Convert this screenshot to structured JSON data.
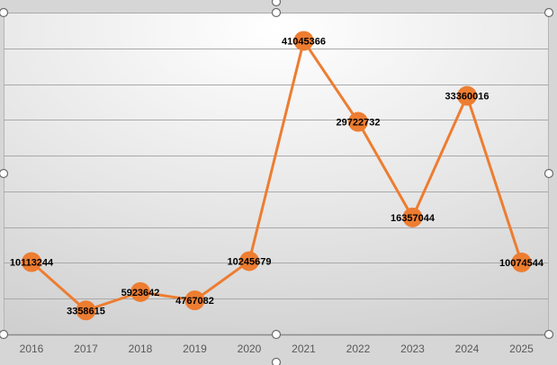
{
  "chart_data": {
    "type": "line",
    "title": "",
    "xlabel": "",
    "ylabel": "",
    "categories": [
      "2016",
      "2017",
      "2018",
      "2019",
      "2020",
      "2021",
      "2022",
      "2023",
      "2024",
      "2025"
    ],
    "series": [
      {
        "values": [
          10113244,
          3358615,
          5923642,
          4767082,
          10245679,
          41045366,
          29722732,
          16357044,
          33360016,
          10074544
        ],
        "color": "#ED7D31"
      }
    ],
    "data_labels": [
      "10113244",
      "3358615",
      "5923642",
      "4767082",
      "10245679",
      "41045366",
      "29722732",
      "16357044",
      "33360016",
      "10074544"
    ],
    "ylim": [
      0,
      45000000
    ],
    "y_tick_step": 5000000,
    "y_axis_labels_visible": false,
    "grid": true,
    "legend": "none",
    "colors": {
      "line": "#ED7D31",
      "marker": "#ED7D31",
      "gridline": "#a9a9a9",
      "axis": "#8a8a8a",
      "tick_label": "#595959",
      "data_label": "#000000",
      "selection_handle_fill": "#ffffff",
      "selection_handle_stroke": "#6a6a6a"
    }
  }
}
